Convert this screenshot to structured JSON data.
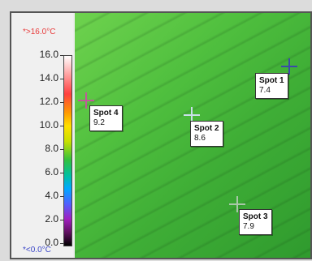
{
  "scale": {
    "max_label": "*>16.0°C",
    "min_label": "*<0.0°C",
    "ticks": [
      "16.0",
      "14.0",
      "12.0",
      "10.0",
      "8.0",
      "6.0",
      "4.0",
      "2.0",
      "0.0"
    ],
    "max_color": "#e83a3a",
    "min_color": "#3a46c8"
  },
  "spots": [
    {
      "name": "Spot 1",
      "value": "7.4",
      "marker_color": "#3a4aa8"
    },
    {
      "name": "Spot 2",
      "value": "8.6",
      "marker_color": "#c8e0e8"
    },
    {
      "name": "Spot 3",
      "value": "7.9",
      "marker_color": "#a8c8a8"
    },
    {
      "name": "Spot 4",
      "value": "9.2",
      "marker_color": "#c05a9a"
    }
  ]
}
